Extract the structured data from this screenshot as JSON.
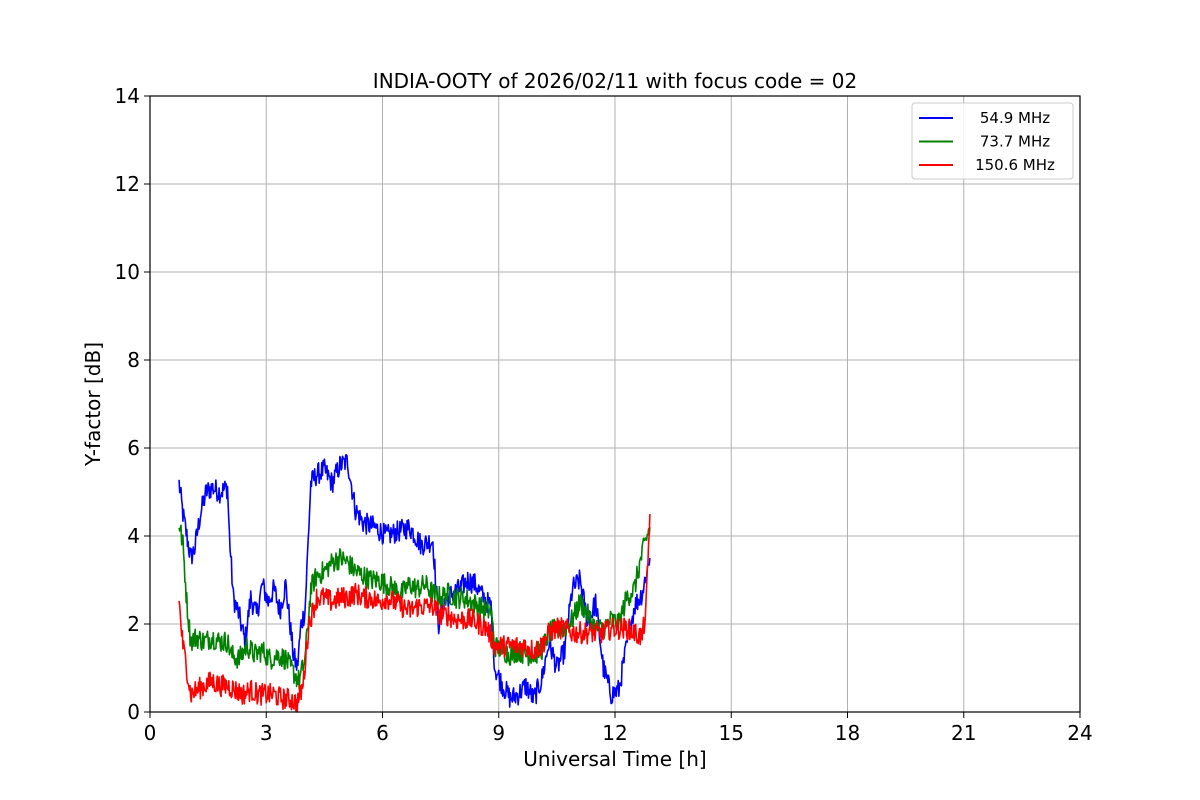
{
  "chart_data": {
    "type": "line",
    "title": "INDIA-OOTY of 2026/02/11 with focus code = 02",
    "xlabel": "Universal Time [h]",
    "ylabel": "Y-factor [dB]",
    "xlim": [
      0,
      24
    ],
    "ylim": [
      0,
      14
    ],
    "xticks": [
      0,
      3,
      6,
      9,
      12,
      15,
      18,
      21,
      24
    ],
    "yticks": [
      0,
      2,
      4,
      6,
      8,
      10,
      12,
      14
    ],
    "xtick_labels": [
      "0",
      "3",
      "6",
      "9",
      "12",
      "15",
      "18",
      "21",
      "24"
    ],
    "ytick_labels": [
      "0",
      "2",
      "4",
      "6",
      "8",
      "10",
      "12",
      "14"
    ],
    "grid": true,
    "legend_position": "top-right",
    "noise": 0.25,
    "series": [
      {
        "name": "54.9 MHz",
        "legend_label": "54.9 MHz",
        "color": "#0000ff",
        "points": [
          [
            0.75,
            5.2
          ],
          [
            0.85,
            4.5
          ],
          [
            0.95,
            4.0
          ],
          [
            1.05,
            3.5
          ],
          [
            1.15,
            3.7
          ],
          [
            1.3,
            4.5
          ],
          [
            1.45,
            5.0
          ],
          [
            1.6,
            5.1
          ],
          [
            1.8,
            5.0
          ],
          [
            2.0,
            5.1
          ],
          [
            2.05,
            4.0
          ],
          [
            2.15,
            2.6
          ],
          [
            2.3,
            2.2
          ],
          [
            2.45,
            1.6
          ],
          [
            2.6,
            2.6
          ],
          [
            2.75,
            2.2
          ],
          [
            2.9,
            2.9
          ],
          [
            3.05,
            2.5
          ],
          [
            3.2,
            2.8
          ],
          [
            3.35,
            2.3
          ],
          [
            3.5,
            2.9
          ],
          [
            3.6,
            2.1
          ],
          [
            3.7,
            1.3
          ],
          [
            3.8,
            1.0
          ],
          [
            3.9,
            2.0
          ],
          [
            4.0,
            2.3
          ],
          [
            4.15,
            5.2
          ],
          [
            4.3,
            5.4
          ],
          [
            4.5,
            5.5
          ],
          [
            4.7,
            5.2
          ],
          [
            4.9,
            5.6
          ],
          [
            5.1,
            5.7
          ],
          [
            5.3,
            4.6
          ],
          [
            5.5,
            4.3
          ],
          [
            5.8,
            4.2
          ],
          [
            6.1,
            4.0
          ],
          [
            6.4,
            4.1
          ],
          [
            6.7,
            4.2
          ],
          [
            7.0,
            3.8
          ],
          [
            7.3,
            3.9
          ],
          [
            7.45,
            2.0
          ],
          [
            7.6,
            2.5
          ],
          [
            7.8,
            2.7
          ],
          [
            8.0,
            2.8
          ],
          [
            8.2,
            3.0
          ],
          [
            8.4,
            2.9
          ],
          [
            8.6,
            2.6
          ],
          [
            8.8,
            2.4
          ],
          [
            8.9,
            1.0
          ],
          [
            9.1,
            0.6
          ],
          [
            9.3,
            0.3
          ],
          [
            9.5,
            0.4
          ],
          [
            9.7,
            0.6
          ],
          [
            9.9,
            0.3
          ],
          [
            10.1,
            0.7
          ],
          [
            10.3,
            1.6
          ],
          [
            10.5,
            1.0
          ],
          [
            10.7,
            1.4
          ],
          [
            10.9,
            2.8
          ],
          [
            11.1,
            3.0
          ],
          [
            11.3,
            2.0
          ],
          [
            11.5,
            2.5
          ],
          [
            11.7,
            1.0
          ],
          [
            11.9,
            0.4
          ],
          [
            12.1,
            0.5
          ],
          [
            12.3,
            1.5
          ],
          [
            12.5,
            2.4
          ],
          [
            12.7,
            2.7
          ],
          [
            12.9,
            3.5
          ]
        ]
      },
      {
        "name": "73.7 MHz",
        "legend_label": "73.7 MHz",
        "color": "#008000",
        "points": [
          [
            0.75,
            4.3
          ],
          [
            0.85,
            3.8
          ],
          [
            0.95,
            2.5
          ],
          [
            1.05,
            1.6
          ],
          [
            1.2,
            1.7
          ],
          [
            1.4,
            1.6
          ],
          [
            1.6,
            1.7
          ],
          [
            1.8,
            1.6
          ],
          [
            2.0,
            1.6
          ],
          [
            2.1,
            1.3
          ],
          [
            2.3,
            1.2
          ],
          [
            2.5,
            1.5
          ],
          [
            2.7,
            1.3
          ],
          [
            2.9,
            1.4
          ],
          [
            3.1,
            1.2
          ],
          [
            3.3,
            1.3
          ],
          [
            3.5,
            1.2
          ],
          [
            3.7,
            0.9
          ],
          [
            3.85,
            0.7
          ],
          [
            4.0,
            1.2
          ],
          [
            4.15,
            2.8
          ],
          [
            4.3,
            3.1
          ],
          [
            4.5,
            3.2
          ],
          [
            4.7,
            3.4
          ],
          [
            4.9,
            3.5
          ],
          [
            5.1,
            3.4
          ],
          [
            5.3,
            3.2
          ],
          [
            5.5,
            3.1
          ],
          [
            5.7,
            3.0
          ],
          [
            5.9,
            3.0
          ],
          [
            6.1,
            2.9
          ],
          [
            6.3,
            2.8
          ],
          [
            6.5,
            2.7
          ],
          [
            6.7,
            2.9
          ],
          [
            6.9,
            2.8
          ],
          [
            7.1,
            2.9
          ],
          [
            7.3,
            2.7
          ],
          [
            7.5,
            2.6
          ],
          [
            7.7,
            2.7
          ],
          [
            7.9,
            2.6
          ],
          [
            8.1,
            2.6
          ],
          [
            8.3,
            2.5
          ],
          [
            8.5,
            2.4
          ],
          [
            8.7,
            2.3
          ],
          [
            8.8,
            2.3
          ],
          [
            8.9,
            1.5
          ],
          [
            9.1,
            1.4
          ],
          [
            9.3,
            1.3
          ],
          [
            9.5,
            1.4
          ],
          [
            9.7,
            1.3
          ],
          [
            9.9,
            1.3
          ],
          [
            10.1,
            1.4
          ],
          [
            10.3,
            1.8
          ],
          [
            10.5,
            1.9
          ],
          [
            10.7,
            1.9
          ],
          [
            10.9,
            2.1
          ],
          [
            11.1,
            2.5
          ],
          [
            11.3,
            2.2
          ],
          [
            11.5,
            1.9
          ],
          [
            11.7,
            1.9
          ],
          [
            11.9,
            2.1
          ],
          [
            12.1,
            2.0
          ],
          [
            12.3,
            2.6
          ],
          [
            12.5,
            2.8
          ],
          [
            12.7,
            3.6
          ],
          [
            12.9,
            4.2
          ]
        ]
      },
      {
        "name": "150.6 MHz",
        "legend_label": "150.6 MHz",
        "color": "#ff0000",
        "points": [
          [
            0.75,
            2.5
          ],
          [
            0.85,
            1.5
          ],
          [
            0.95,
            1.0
          ],
          [
            1.05,
            0.4
          ],
          [
            1.2,
            0.5
          ],
          [
            1.4,
            0.6
          ],
          [
            1.6,
            0.7
          ],
          [
            1.8,
            0.6
          ],
          [
            2.0,
            0.6
          ],
          [
            2.2,
            0.5
          ],
          [
            2.4,
            0.4
          ],
          [
            2.6,
            0.5
          ],
          [
            2.8,
            0.4
          ],
          [
            3.0,
            0.4
          ],
          [
            3.2,
            0.4
          ],
          [
            3.4,
            0.3
          ],
          [
            3.6,
            0.3
          ],
          [
            3.8,
            0.2
          ],
          [
            3.95,
            0.6
          ],
          [
            4.1,
            2.0
          ],
          [
            4.3,
            2.6
          ],
          [
            4.5,
            2.6
          ],
          [
            4.7,
            2.5
          ],
          [
            4.9,
            2.6
          ],
          [
            5.1,
            2.6
          ],
          [
            5.3,
            2.7
          ],
          [
            5.5,
            2.6
          ],
          [
            5.7,
            2.6
          ],
          [
            5.9,
            2.5
          ],
          [
            6.1,
            2.6
          ],
          [
            6.3,
            2.5
          ],
          [
            6.5,
            2.4
          ],
          [
            6.7,
            2.3
          ],
          [
            6.9,
            2.4
          ],
          [
            7.1,
            2.4
          ],
          [
            7.3,
            2.4
          ],
          [
            7.5,
            2.2
          ],
          [
            7.7,
            2.2
          ],
          [
            7.9,
            2.1
          ],
          [
            8.1,
            2.1
          ],
          [
            8.3,
            2.1
          ],
          [
            8.5,
            2.0
          ],
          [
            8.7,
            1.9
          ],
          [
            8.9,
            1.5
          ],
          [
            9.1,
            1.5
          ],
          [
            9.3,
            1.5
          ],
          [
            9.5,
            1.5
          ],
          [
            9.7,
            1.5
          ],
          [
            9.9,
            1.4
          ],
          [
            10.1,
            1.5
          ],
          [
            10.3,
            1.8
          ],
          [
            10.5,
            1.9
          ],
          [
            10.7,
            1.9
          ],
          [
            10.9,
            1.8
          ],
          [
            11.1,
            1.8
          ],
          [
            11.3,
            1.8
          ],
          [
            11.5,
            1.8
          ],
          [
            11.7,
            1.8
          ],
          [
            11.9,
            1.9
          ],
          [
            12.1,
            1.9
          ],
          [
            12.3,
            1.9
          ],
          [
            12.5,
            1.8
          ],
          [
            12.7,
            1.7
          ],
          [
            12.8,
            2.3
          ],
          [
            12.9,
            4.5
          ]
        ]
      }
    ]
  }
}
